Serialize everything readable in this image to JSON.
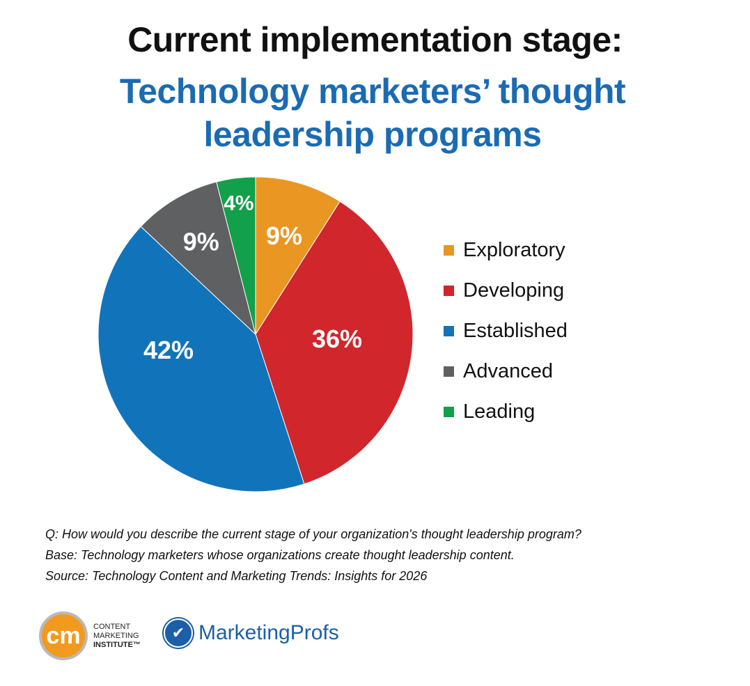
{
  "chart_data": {
    "type": "pie",
    "title": "Current implementation stage:",
    "subtitle": "Technology marketers’ thought leadership programs",
    "categories": [
      "Exploratory",
      "Developing",
      "Established",
      "Advanced",
      "Leading"
    ],
    "values": [
      9,
      36,
      42,
      9,
      4
    ],
    "labels": [
      "9%",
      "36%",
      "42%",
      "9%",
      "4%"
    ],
    "colors": [
      "#E99623",
      "#D0262C",
      "#1174BB",
      "#5F6062",
      "#12A04A"
    ],
    "legend_position": "right"
  },
  "notes": {
    "question": "Q: How would you describe the current stage of your organization's thought leadership program?",
    "base": "Base: Technology marketers whose organizations create thought leadership content.",
    "source": "Source: Technology Content and Marketing Trends: Insights for 2026"
  },
  "logos": {
    "cmi_mark": "cm",
    "cmi_line1": "CONTENT",
    "cmi_line2": "MARKETING",
    "cmi_line3": "INSTITUTE™",
    "mp_name": "MarketingProfs"
  }
}
